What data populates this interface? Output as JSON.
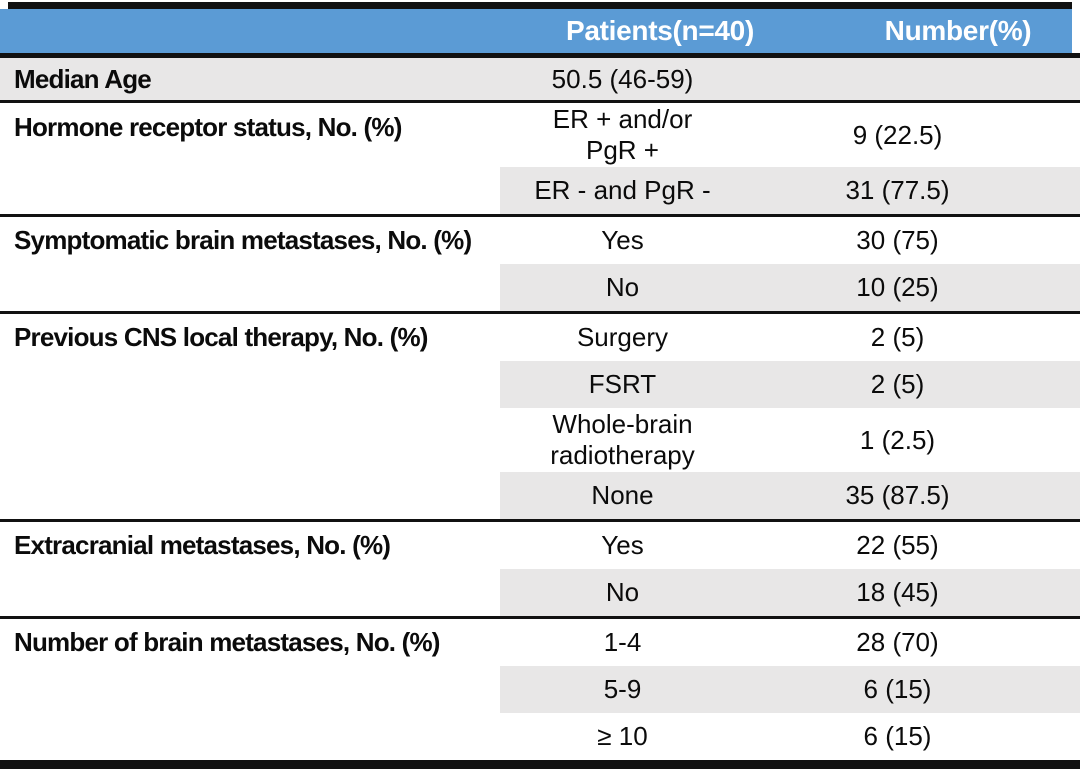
{
  "table": {
    "header": {
      "col2": "Patients(n=40)",
      "col3": "Number(%)"
    },
    "sections": [
      {
        "label": "Median Age",
        "rows": [
          {
            "cat": [
              "50.5 (46-59)"
            ],
            "value": ""
          }
        ]
      },
      {
        "label": "Hormone receptor status, No. (%)",
        "rows": [
          {
            "cat": [
              "ER + and/or",
              "PgR +"
            ],
            "value": "9 (22.5)"
          },
          {
            "cat": [
              "ER - and PgR -"
            ],
            "value": "31 (77.5)"
          }
        ]
      },
      {
        "label": "Symptomatic brain metastases, No. (%)",
        "rows": [
          {
            "cat": [
              "Yes"
            ],
            "value": "30 (75)"
          },
          {
            "cat": [
              "No"
            ],
            "value": "10 (25)"
          }
        ]
      },
      {
        "label": "Previous CNS local therapy, No. (%)",
        "rows": [
          {
            "cat": [
              "Surgery"
            ],
            "value": "2 (5)"
          },
          {
            "cat": [
              "FSRT"
            ],
            "value": "2 (5)"
          },
          {
            "cat": [
              "Whole-brain",
              "radiotherapy"
            ],
            "value": "1 (2.5)"
          },
          {
            "cat": [
              "None"
            ],
            "value": "35 (87.5)"
          }
        ]
      },
      {
        "label": "Extracranial metastases, No. (%)",
        "rows": [
          {
            "cat": [
              "Yes"
            ],
            "value": "22 (55)"
          },
          {
            "cat": [
              "No"
            ],
            "value": "18 (45)"
          }
        ]
      },
      {
        "label": "Number of brain metastases, No. (%)",
        "rows": [
          {
            "cat": [
              "1-4"
            ],
            "value": "28 (70)"
          },
          {
            "cat": [
              "5-9"
            ],
            "value": "6 (15)"
          },
          {
            "cat": [
              "≥ 10"
            ],
            "value": "6 (15)"
          }
        ]
      }
    ],
    "colors": {
      "header_blue": "#5B9BD5",
      "row_gray": "#E8E7E7",
      "line_black": "#111111"
    }
  }
}
